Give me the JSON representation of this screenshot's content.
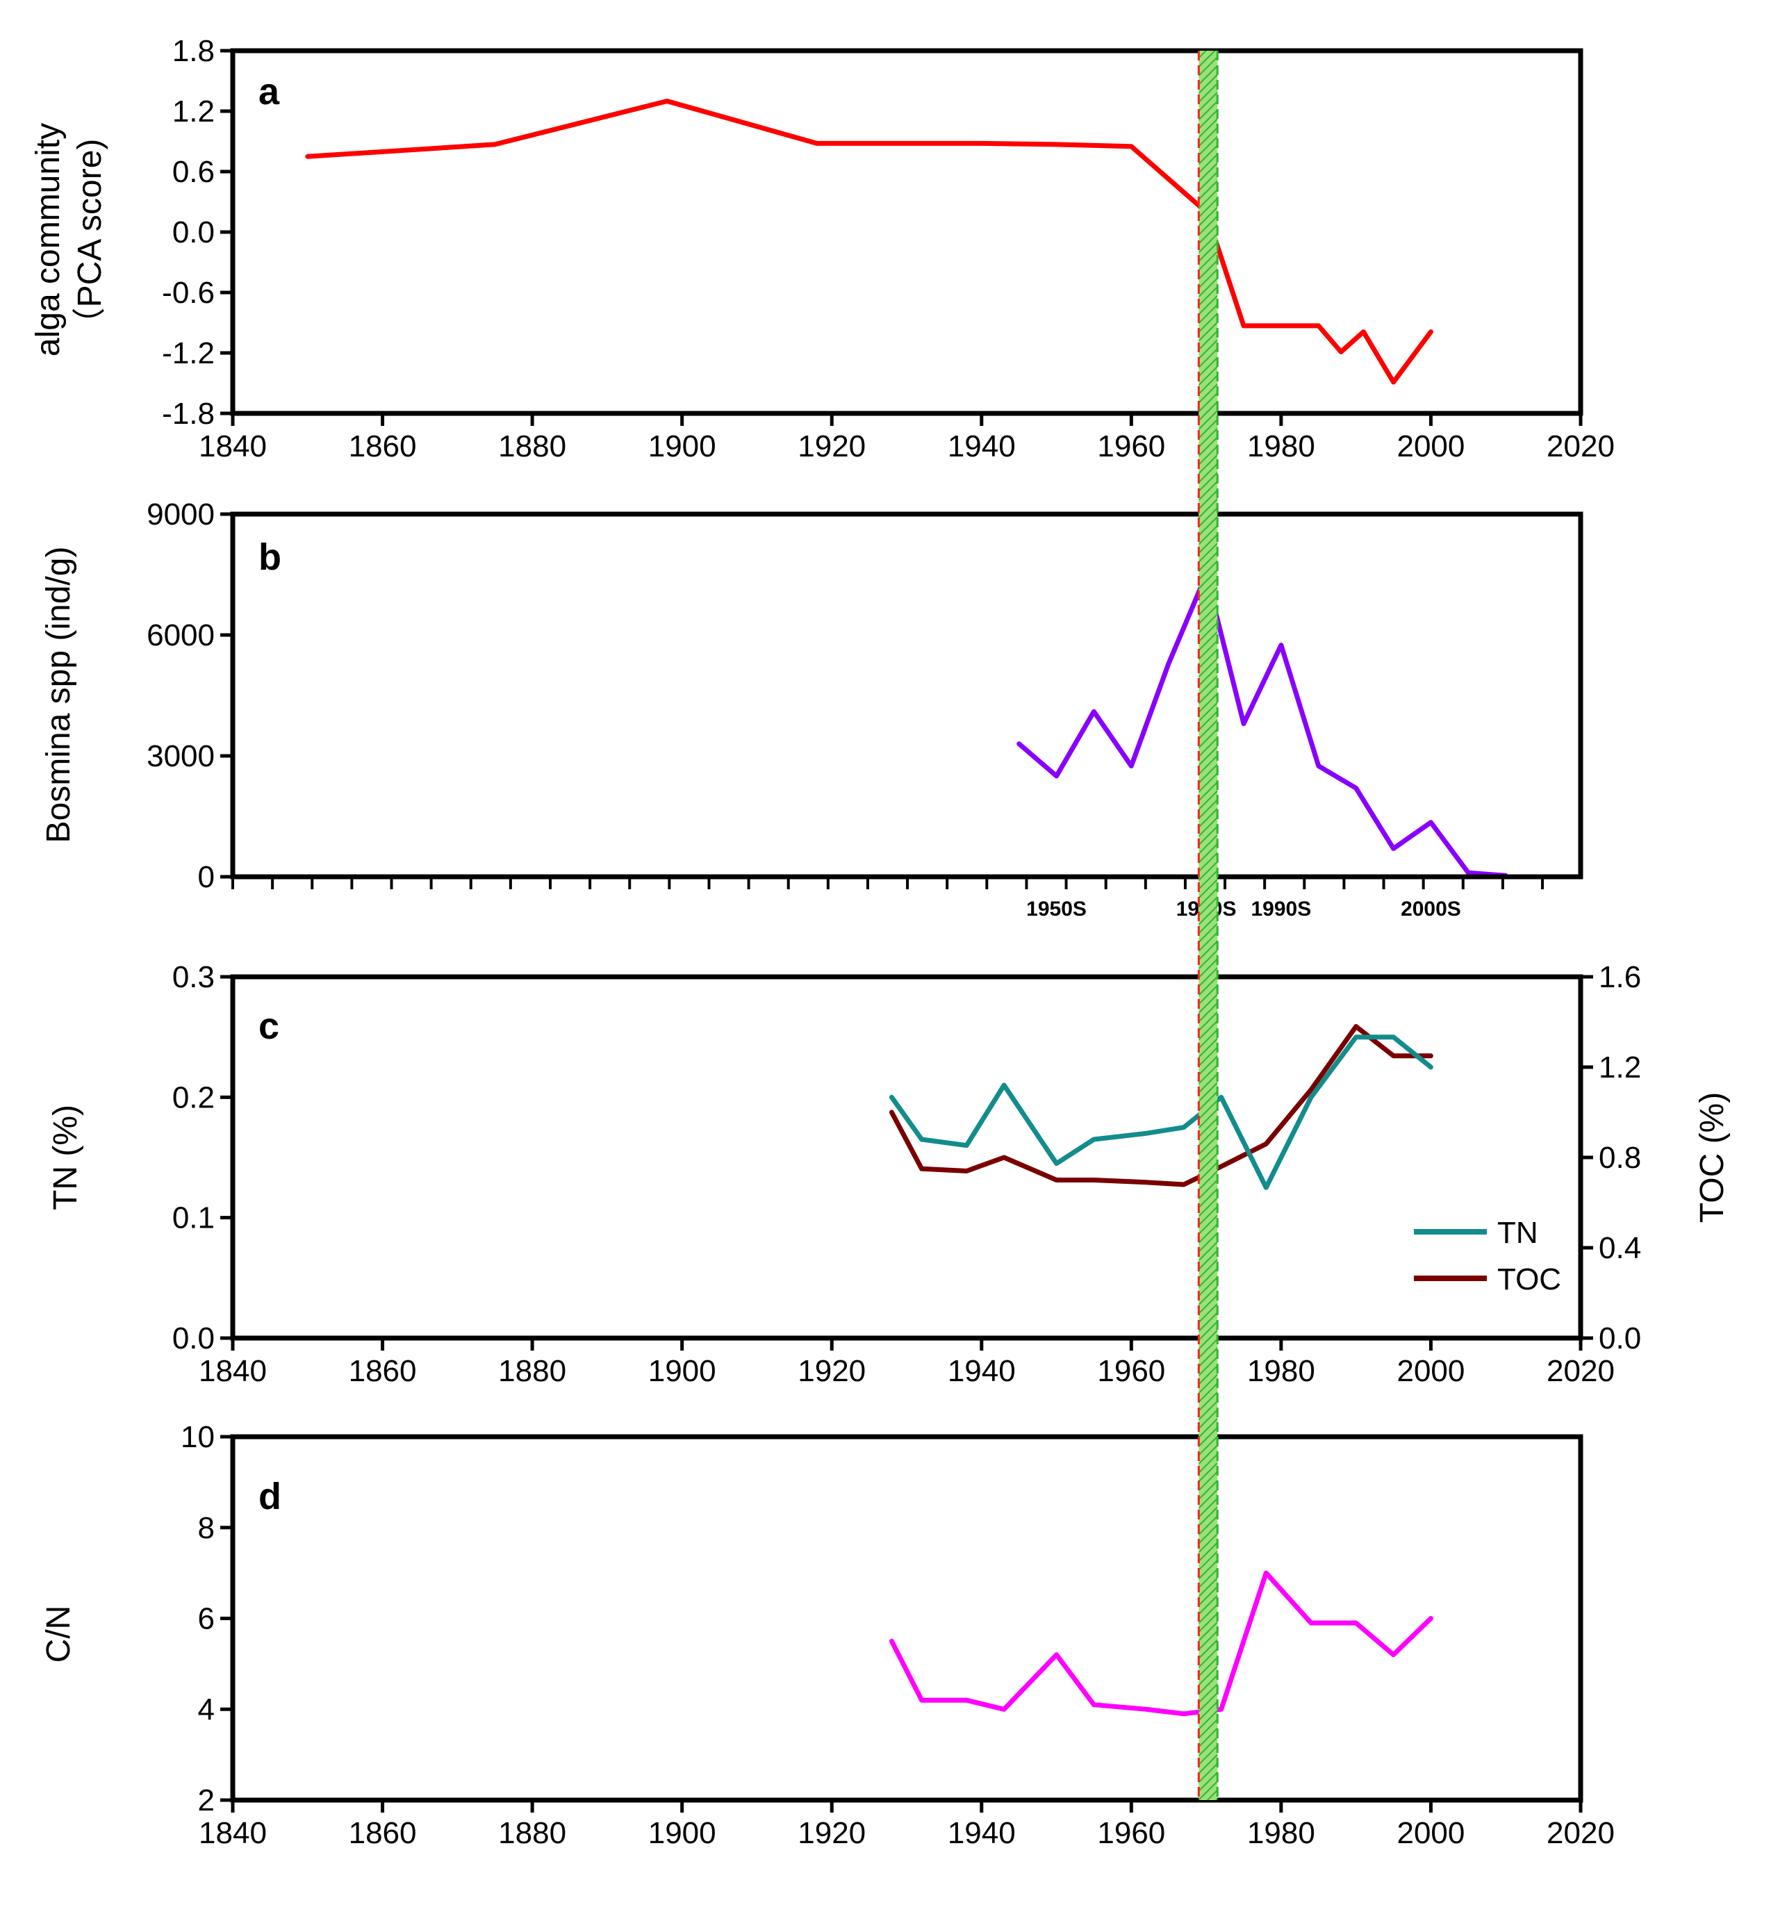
{
  "figure": {
    "marker_band": {
      "x_from": 1969,
      "x_to": 1971.5
    },
    "colors": {
      "algae": "#ff0000",
      "bosmina": "#8800ff",
      "tn": "#138c8c",
      "toc": "#7a0000",
      "cn": "#ff00ff",
      "band_fill": "#9ce07a",
      "band_hatch": "#2fb52f",
      "band_edge_left": "#ff2020",
      "band_edge_right": "#2fb52f"
    }
  },
  "chart_data": [
    {
      "id": "a",
      "type": "line",
      "panel_label": "a",
      "ylabel_lines": [
        "alga community",
        "（PCA score)"
      ],
      "xlim": [
        1840,
        2020
      ],
      "ylim": [
        -1.8,
        1.8
      ],
      "xticks": [
        "1840",
        "1860",
        "1880",
        "1900",
        "1920",
        "1940",
        "1960",
        "1980",
        "2000",
        "2020"
      ],
      "yticks": [
        "1.8",
        "1.2",
        "0.6",
        "0.0",
        "-0.6",
        "-1.2",
        "-1.8"
      ],
      "series": [
        {
          "color_key": "algae",
          "x": [
            1850,
            1875,
            1898,
            1918,
            1940,
            1950,
            1960,
            1970,
            1975,
            1980,
            1985,
            1988,
            1991,
            1995,
            2000
          ],
          "y": [
            0.75,
            0.87,
            1.3,
            0.88,
            0.88,
            0.87,
            0.85,
            0.2,
            -0.93,
            -0.93,
            -0.93,
            -1.19,
            -0.99,
            -1.49,
            -0.99
          ]
        }
      ]
    },
    {
      "id": "b",
      "type": "line",
      "panel_label": "b",
      "ylabel_lines": [
        "Bosmina spp (ind/g)"
      ],
      "ylim": [
        0,
        9000
      ],
      "yticks": [
        "9000",
        "6000",
        "3000",
        "0"
      ],
      "decade_labels": [
        {
          "text": "1950S",
          "x": 1950
        },
        {
          "text": "1970S",
          "x": 1970
        },
        {
          "text": "1990S",
          "x": 1980
        },
        {
          "text": "2000S",
          "x": 2000
        }
      ],
      "series": [
        {
          "color_key": "bosmina",
          "x": [
            1945,
            1950,
            1955,
            1960,
            1965,
            1970,
            1975,
            1980,
            1985,
            1990,
            1995,
            2000,
            2005,
            2010
          ],
          "y": [
            3300,
            2500,
            4100,
            2750,
            5300,
            7500,
            3800,
            5750,
            2750,
            2200,
            700,
            1350,
            100,
            30
          ]
        }
      ]
    },
    {
      "id": "c",
      "type": "line",
      "panel_label": "c",
      "ylabel_left": "TN (%)",
      "ylabel_right": "TOC (%)",
      "xlim": [
        1840,
        2020
      ],
      "ylim_left": [
        0,
        0.3
      ],
      "ylim_right": [
        0,
        1.6
      ],
      "xticks": [
        "1840",
        "1860",
        "1880",
        "1900",
        "1920",
        "1940",
        "1960",
        "1980",
        "2000",
        "2020"
      ],
      "yticks_left": [
        "0.3",
        "0.2",
        "0.1",
        "0.0"
      ],
      "yticks_right": [
        "1.6",
        "1.2",
        "0.8",
        "0.4",
        "0.0"
      ],
      "series": [
        {
          "name": "TN",
          "axis": "left",
          "color_key": "tn",
          "x": [
            1928,
            1932,
            1938,
            1943,
            1950,
            1955,
            1962,
            1967,
            1972,
            1978,
            1984,
            1990,
            1995,
            2000
          ],
          "y": [
            0.2,
            0.165,
            0.16,
            0.21,
            0.145,
            0.165,
            0.17,
            0.175,
            0.2,
            0.125,
            0.2,
            0.25,
            0.25,
            0.225
          ]
        },
        {
          "name": "TOC",
          "axis": "right",
          "color_key": "toc",
          "x": [
            1928,
            1932,
            1938,
            1943,
            1950,
            1955,
            1962,
            1967,
            1972,
            1978,
            1984,
            1990,
            1995,
            2000
          ],
          "y": [
            1.0,
            0.75,
            0.74,
            0.8,
            0.7,
            0.7,
            0.69,
            0.68,
            0.76,
            0.86,
            1.1,
            1.38,
            1.25,
            1.25
          ]
        }
      ]
    },
    {
      "id": "d",
      "type": "line",
      "panel_label": "d",
      "ylabel_lines": [
        "C/N"
      ],
      "xlim": [
        1840,
        2020
      ],
      "ylim": [
        2,
        10
      ],
      "xticks": [
        "1840",
        "1860",
        "1880",
        "1900",
        "1920",
        "1940",
        "1960",
        "1980",
        "2000",
        "2020"
      ],
      "yticks": [
        "10",
        "8",
        "6",
        "4",
        "2"
      ],
      "series": [
        {
          "color_key": "cn",
          "x": [
            1928,
            1932,
            1938,
            1943,
            1950,
            1955,
            1962,
            1967,
            1972,
            1978,
            1984,
            1990,
            1995,
            2000
          ],
          "y": [
            5.5,
            4.2,
            4.2,
            4.0,
            5.2,
            4.1,
            4.0,
            3.9,
            4.0,
            7.0,
            5.9,
            5.9,
            5.2,
            6.0
          ]
        }
      ]
    }
  ]
}
